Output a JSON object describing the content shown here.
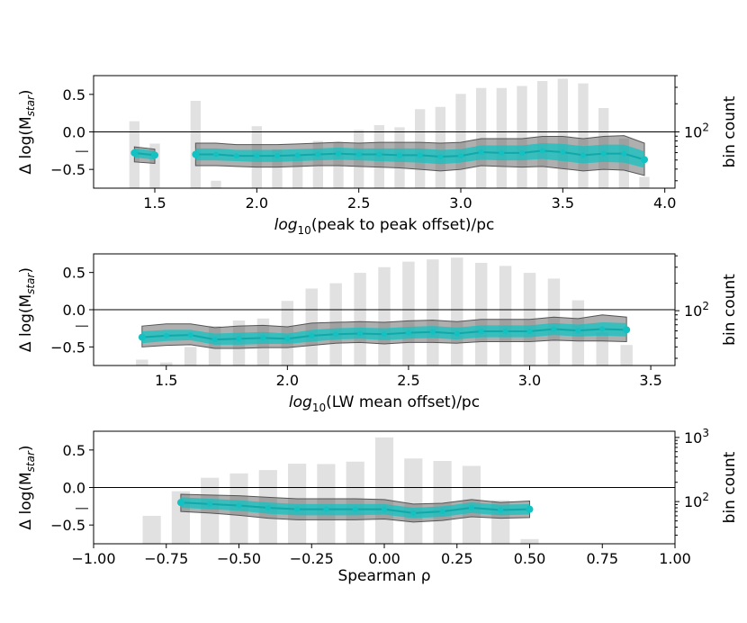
{
  "chart_data": [
    {
      "type": "line",
      "xlabel_prefix": "log",
      "xlabel_sub": "10",
      "xlabel_suffix": "(peak to peak offset)/pc",
      "ylabel": "Δ log(M",
      "ylabel_sub": "star",
      "ylabel_close": ")",
      "y2label": "bin count",
      "xlim": [
        1.2,
        4.05
      ],
      "ylim": [
        -0.75,
        0.75
      ],
      "xticks": [
        1.5,
        2.0,
        2.5,
        3.0,
        3.5,
        4.0
      ],
      "xtick_labels": [
        "1.5",
        "2.0",
        "2.5",
        "3.0",
        "3.5",
        "4.0"
      ],
      "yticks": [
        0.5,
        0.0,
        -0.5
      ],
      "ytick_labels": [
        "0.5",
        "0.0",
        "−0.5"
      ],
      "y2lim_log": [
        25,
        400
      ],
      "y2ticks": [
        100
      ],
      "y2tick_labels": [
        "10",
        "2"
      ],
      "baseline_marker": -0.26,
      "bar_width": 0.05,
      "bars": {
        "x": [
          1.4,
          1.5,
          1.6,
          1.7,
          1.8,
          1.9,
          2.0,
          2.1,
          2.2,
          2.3,
          2.4,
          2.5,
          2.6,
          2.7,
          2.8,
          2.9,
          3.0,
          3.1,
          3.2,
          3.3,
          3.4,
          3.5,
          3.6,
          3.7,
          3.8,
          3.9
        ],
        "count": [
          130,
          75,
          22,
          215,
          30,
          25,
          115,
          65,
          58,
          80,
          78,
          105,
          118,
          112,
          175,
          185,
          255,
          295,
          295,
          310,
          350,
          370,
          330,
          180,
          85,
          33
        ]
      },
      "segments": [
        {
          "x": [
            1.4,
            1.5
          ],
          "median": [
            -0.28,
            -0.31
          ],
          "inner_lo": [
            -0.34,
            -0.37
          ],
          "inner_hi": [
            -0.22,
            -0.25
          ],
          "outer_lo": [
            -0.4,
            -0.42
          ],
          "outer_hi": [
            -0.2,
            -0.23
          ]
        },
        {
          "x": [
            1.7,
            1.8,
            1.9,
            2.0,
            2.1,
            2.2,
            2.3,
            2.4,
            2.5,
            2.6,
            2.7,
            2.8,
            2.9,
            3.0,
            3.1,
            3.2,
            3.3,
            3.4,
            3.5,
            3.6,
            3.7,
            3.8,
            3.9
          ],
          "median": [
            -0.3,
            -0.3,
            -0.32,
            -0.32,
            -0.32,
            -0.31,
            -0.3,
            -0.29,
            -0.3,
            -0.3,
            -0.31,
            -0.31,
            -0.33,
            -0.32,
            -0.27,
            -0.28,
            -0.28,
            -0.25,
            -0.27,
            -0.31,
            -0.29,
            -0.29,
            -0.37
          ],
          "inner_lo": [
            -0.38,
            -0.38,
            -0.39,
            -0.4,
            -0.4,
            -0.39,
            -0.38,
            -0.37,
            -0.38,
            -0.39,
            -0.4,
            -0.41,
            -0.43,
            -0.41,
            -0.37,
            -0.38,
            -0.38,
            -0.36,
            -0.39,
            -0.42,
            -0.4,
            -0.41,
            -0.48
          ],
          "inner_hi": [
            -0.22,
            -0.22,
            -0.24,
            -0.24,
            -0.24,
            -0.23,
            -0.22,
            -0.21,
            -0.22,
            -0.22,
            -0.22,
            -0.22,
            -0.24,
            -0.23,
            -0.18,
            -0.18,
            -0.18,
            -0.15,
            -0.16,
            -0.19,
            -0.17,
            -0.17,
            -0.26
          ],
          "outer_lo": [
            -0.45,
            -0.45,
            -0.46,
            -0.47,
            -0.47,
            -0.46,
            -0.45,
            -0.45,
            -0.46,
            -0.47,
            -0.48,
            -0.5,
            -0.52,
            -0.5,
            -0.45,
            -0.46,
            -0.47,
            -0.46,
            -0.49,
            -0.52,
            -0.5,
            -0.51,
            -0.58
          ],
          "outer_hi": [
            -0.15,
            -0.15,
            -0.17,
            -0.17,
            -0.17,
            -0.16,
            -0.15,
            -0.14,
            -0.15,
            -0.14,
            -0.14,
            -0.14,
            -0.15,
            -0.14,
            -0.09,
            -0.09,
            -0.09,
            -0.06,
            -0.06,
            -0.09,
            -0.06,
            -0.05,
            -0.15
          ]
        }
      ]
    },
    {
      "type": "line",
      "xlabel_prefix": "log",
      "xlabel_sub": "10",
      "xlabel_suffix": "(LW mean offset)/pc",
      "ylabel": "Δ log(M",
      "ylabel_sub": "star",
      "ylabel_close": ")",
      "y2label": "bin count",
      "xlim": [
        1.2,
        3.6
      ],
      "ylim": [
        -0.75,
        0.75
      ],
      "xticks": [
        1.5,
        2.0,
        2.5,
        3.0,
        3.5
      ],
      "xtick_labels": [
        "1.5",
        "2.0",
        "2.5",
        "3.0",
        "3.5"
      ],
      "yticks": [
        0.5,
        0.0,
        -0.5
      ],
      "ytick_labels": [
        "0.5",
        "0.0",
        "−0.5"
      ],
      "y2lim_log": [
        25,
        420
      ],
      "y2ticks": [
        100
      ],
      "y2tick_labels": [
        "10",
        "2"
      ],
      "baseline_marker": -0.22,
      "bar_width": 0.05,
      "bars": {
        "x": [
          1.4,
          1.5,
          1.6,
          1.7,
          1.8,
          1.9,
          2.0,
          2.1,
          2.2,
          2.3,
          2.4,
          2.5,
          2.6,
          2.7,
          2.8,
          2.9,
          3.0,
          3.1,
          3.2,
          3.3,
          3.4
        ],
        "count": [
          29,
          27,
          40,
          68,
          78,
          82,
          128,
          175,
          200,
          260,
          300,
          345,
          365,
          382,
          335,
          310,
          260,
          225,
          130,
          58,
          42
        ]
      },
      "segments": [
        {
          "x": [
            1.4,
            1.5,
            1.6,
            1.7,
            1.8,
            1.9,
            2.0,
            2.1,
            2.2,
            2.3,
            2.4,
            2.5,
            2.6,
            2.7,
            2.8,
            2.9,
            3.0,
            3.1,
            3.2,
            3.3,
            3.4
          ],
          "median": [
            -0.37,
            -0.35,
            -0.34,
            -0.4,
            -0.39,
            -0.38,
            -0.39,
            -0.35,
            -0.33,
            -0.32,
            -0.33,
            -0.31,
            -0.3,
            -0.32,
            -0.29,
            -0.29,
            -0.29,
            -0.26,
            -0.28,
            -0.26,
            -0.27
          ],
          "inner_lo": [
            -0.45,
            -0.42,
            -0.41,
            -0.47,
            -0.47,
            -0.46,
            -0.46,
            -0.43,
            -0.4,
            -0.39,
            -0.41,
            -0.39,
            -0.38,
            -0.4,
            -0.37,
            -0.37,
            -0.37,
            -0.34,
            -0.36,
            -0.35,
            -0.36
          ],
          "inner_hi": [
            -0.29,
            -0.27,
            -0.27,
            -0.32,
            -0.31,
            -0.3,
            -0.32,
            -0.27,
            -0.25,
            -0.24,
            -0.25,
            -0.23,
            -0.22,
            -0.24,
            -0.21,
            -0.21,
            -0.21,
            -0.18,
            -0.2,
            -0.17,
            -0.18
          ],
          "outer_lo": [
            -0.5,
            -0.48,
            -0.47,
            -0.52,
            -0.52,
            -0.51,
            -0.51,
            -0.48,
            -0.45,
            -0.44,
            -0.46,
            -0.44,
            -0.44,
            -0.45,
            -0.43,
            -0.43,
            -0.43,
            -0.41,
            -0.42,
            -0.42,
            -0.43
          ],
          "outer_hi": [
            -0.22,
            -0.19,
            -0.19,
            -0.24,
            -0.22,
            -0.21,
            -0.23,
            -0.18,
            -0.17,
            -0.16,
            -0.17,
            -0.15,
            -0.14,
            -0.16,
            -0.13,
            -0.13,
            -0.13,
            -0.1,
            -0.12,
            -0.07,
            -0.1
          ]
        }
      ]
    },
    {
      "type": "line",
      "xlabel_prefix": "",
      "xlabel_sub": "",
      "xlabel_suffix": "Spearman ρ",
      "ylabel": "Δ log(M",
      "ylabel_sub": "star",
      "ylabel_close": ")",
      "y2label": "bin count",
      "xlim": [
        -1.0,
        1.0
      ],
      "ylim": [
        -0.75,
        0.75
      ],
      "xticks": [
        -1.0,
        -0.75,
        -0.5,
        -0.25,
        0.0,
        0.25,
        0.5,
        0.75,
        1.0
      ],
      "xtick_labels": [
        "−1.00",
        "−0.75",
        "−0.50",
        "−0.25",
        "0.00",
        "0.25",
        "0.50",
        "0.75",
        "1.00"
      ],
      "yticks": [
        0.5,
        0.0,
        -0.5
      ],
      "ytick_labels": [
        "0.5",
        "0.0",
        "−0.5"
      ],
      "y2lim_log": [
        22,
        1250
      ],
      "y2ticks": [
        100,
        1000
      ],
      "y2tick_labels": [
        "10",
        "2",
        "10",
        "3"
      ],
      "baseline_marker": -0.28,
      "bar_width": 0.0625,
      "bars": {
        "x": [
          -0.8,
          -0.7,
          -0.6,
          -0.5,
          -0.4,
          -0.3,
          -0.2,
          -0.1,
          0.0,
          0.1,
          0.2,
          0.3,
          0.4,
          0.5
        ],
        "count": [
          60,
          145,
          235,
          275,
          310,
          390,
          385,
          420,
          1000,
          470,
          430,
          360,
          105,
          26
        ]
      },
      "segments": [
        {
          "x": [
            -0.7,
            -0.6,
            -0.5,
            -0.4,
            -0.3,
            -0.2,
            -0.1,
            0.0,
            0.1,
            0.2,
            0.3,
            0.4,
            0.5
          ],
          "median": [
            -0.2,
            -0.22,
            -0.24,
            -0.27,
            -0.29,
            -0.29,
            -0.29,
            -0.29,
            -0.34,
            -0.32,
            -0.27,
            -0.3,
            -0.29
          ],
          "inner_lo": [
            -0.27,
            -0.29,
            -0.31,
            -0.35,
            -0.37,
            -0.37,
            -0.37,
            -0.36,
            -0.41,
            -0.39,
            -0.34,
            -0.37,
            -0.36
          ],
          "inner_hi": [
            -0.13,
            -0.15,
            -0.17,
            -0.2,
            -0.22,
            -0.22,
            -0.22,
            -0.22,
            -0.27,
            -0.25,
            -0.2,
            -0.23,
            -0.22
          ],
          "outer_lo": [
            -0.32,
            -0.34,
            -0.37,
            -0.41,
            -0.43,
            -0.43,
            -0.43,
            -0.42,
            -0.46,
            -0.44,
            -0.39,
            -0.41,
            -0.4
          ],
          "outer_hi": [
            -0.09,
            -0.1,
            -0.11,
            -0.13,
            -0.15,
            -0.15,
            -0.15,
            -0.16,
            -0.22,
            -0.21,
            -0.16,
            -0.2,
            -0.18
          ]
        }
      ]
    }
  ]
}
